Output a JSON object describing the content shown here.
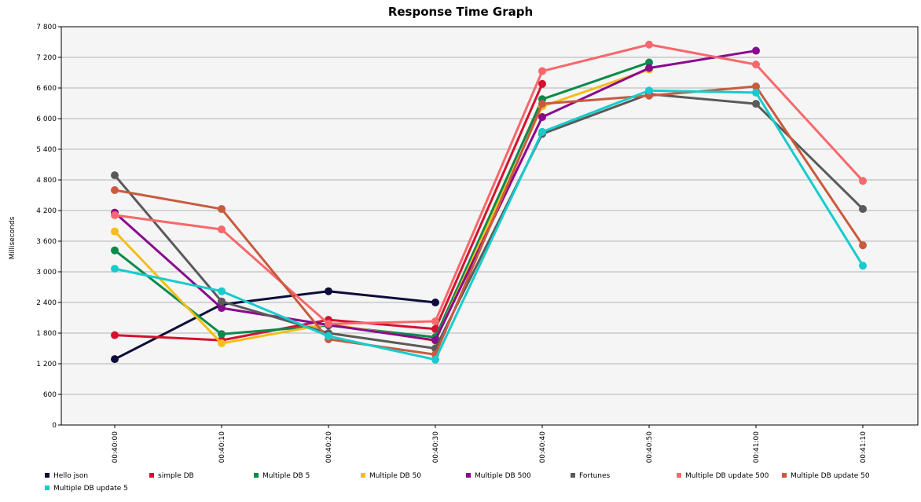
{
  "chart_data": {
    "type": "line",
    "title": "Response Time Graph",
    "xlabel": "",
    "ylabel": "Milliseconds",
    "ylim": [
      0,
      7800
    ],
    "y_ticks": [
      "0",
      "600",
      "1 200",
      "1 800",
      "2 400",
      "3 000",
      "3 600",
      "4 200",
      "4 800",
      "5 400",
      "6 000",
      "6 600",
      "7 200",
      "7 800"
    ],
    "y_tick_values": [
      0,
      600,
      1200,
      1800,
      2400,
      3000,
      3600,
      4200,
      4800,
      5400,
      6000,
      6600,
      7200,
      7800
    ],
    "categories": [
      "00:40:00",
      "00:40:10",
      "00:40:20",
      "00:40:30",
      "00:40:40",
      "00:40:50",
      "00:41:00",
      "00:41:10"
    ],
    "grid": true,
    "legend_position": "bottom",
    "series": [
      {
        "name": "Hello json",
        "color": "#0d0c3a",
        "values": [
          1290,
          2360,
          2620,
          2400,
          null,
          null,
          null,
          null
        ]
      },
      {
        "name": "simple DB",
        "color": "#d4122f",
        "values": [
          1760,
          1660,
          2060,
          1880,
          6680,
          null,
          null,
          null
        ]
      },
      {
        "name": "Multiple DB 5",
        "color": "#0a8a4a",
        "values": [
          3420,
          1780,
          1950,
          1720,
          6380,
          7100,
          null,
          null
        ]
      },
      {
        "name": "Multiple DB 50",
        "color": "#f6bd1a",
        "values": [
          3790,
          1600,
          1980,
          1650,
          6240,
          6960,
          null,
          null
        ]
      },
      {
        "name": "Multiple DB 500",
        "color": "#8a0a8e",
        "values": [
          4160,
          2290,
          1960,
          1660,
          6030,
          6990,
          7330,
          null
        ]
      },
      {
        "name": "Fortunes",
        "color": "#5a5a5a",
        "values": [
          4890,
          2420,
          1800,
          1500,
          5700,
          6480,
          6290,
          4230
        ]
      },
      {
        "name": "Multiple DB update 500",
        "color": "#f7686b",
        "values": [
          4110,
          3830,
          1980,
          2030,
          6930,
          7450,
          7060,
          4780
        ]
      },
      {
        "name": "Multiple DB update 50",
        "color": "#c95a3e",
        "values": [
          4600,
          4230,
          1680,
          1380,
          6290,
          6450,
          6630,
          3520
        ]
      },
      {
        "name": "Multiple DB update 5",
        "color": "#16cccc",
        "values": [
          3060,
          2620,
          1740,
          1280,
          5740,
          6550,
          6510,
          3120
        ]
      }
    ]
  }
}
